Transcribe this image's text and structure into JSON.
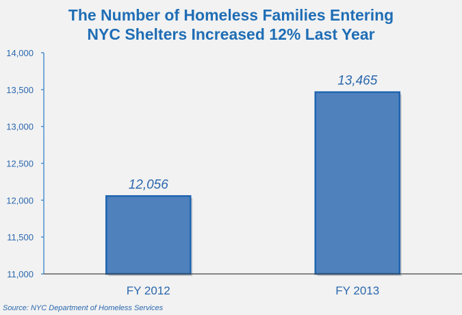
{
  "chart_data": {
    "type": "bar",
    "title_lines": [
      "The Number of Homeless Families Entering",
      "NYC Shelters Increased 12% Last Year"
    ],
    "categories": [
      "FY 2012",
      "FY 2013"
    ],
    "values": [
      12056,
      13465
    ],
    "value_labels": [
      "12,056",
      "13,465"
    ],
    "ylim": [
      11000,
      14000
    ],
    "yticks": [
      11000,
      11500,
      12000,
      12500,
      13000,
      13500,
      14000
    ],
    "ytick_labels": [
      "11,000",
      "11,500",
      "12,000",
      "12,500",
      "13,000",
      "13,500",
      "14,000"
    ],
    "xlabel": "",
    "ylabel": "",
    "grid": false,
    "source": "Source:  NYC Department of Homeless Services",
    "colors": {
      "bar": "#4f81bd",
      "bar_border": "#1f65b0",
      "text": "#2a67ad"
    }
  }
}
